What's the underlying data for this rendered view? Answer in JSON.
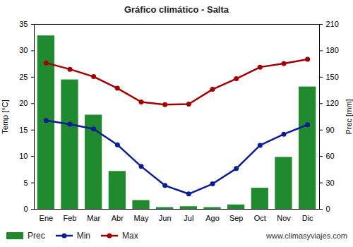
{
  "chart_data": {
    "type": "bar_line",
    "title": "Gráfico climático - Salta",
    "categories": [
      "Ene",
      "Feb",
      "Mar",
      "Abr",
      "May",
      "Jun",
      "Jul",
      "Ago",
      "Sep",
      "Oct",
      "Nov",
      "Dic"
    ],
    "series": [
      {
        "name": "Prec",
        "type": "bar",
        "axis": "y2",
        "color": "#1f8a2e",
        "values": [
          197,
          147,
          107,
          43,
          10,
          2,
          3,
          2,
          5,
          24,
          59,
          139
        ]
      },
      {
        "name": "Min",
        "type": "line",
        "marker": "circle",
        "color": "#0b1d91",
        "values": [
          16.8,
          16.1,
          15.2,
          12.2,
          8.1,
          4.5,
          2.9,
          4.8,
          7.7,
          12.1,
          14.2,
          16.0
        ]
      },
      {
        "name": "Max",
        "type": "line",
        "marker": "circle",
        "color": "#a00000",
        "values": [
          27.7,
          26.5,
          25.1,
          22.9,
          20.3,
          19.8,
          19.9,
          22.7,
          24.7,
          26.9,
          27.6,
          28.4
        ]
      }
    ],
    "ylabel": "Temp [°C]",
    "y2label": "Prec [mm]",
    "ylim": [
      0,
      35
    ],
    "yticks": [
      0,
      5,
      10,
      15,
      20,
      25,
      30,
      35
    ],
    "y2lim": [
      0,
      210
    ],
    "y2ticks": [
      0,
      30,
      60,
      90,
      120,
      150,
      180,
      210
    ],
    "grid": false,
    "legend": "bottom",
    "annotations": [
      "www.climasyviajes.com"
    ]
  }
}
